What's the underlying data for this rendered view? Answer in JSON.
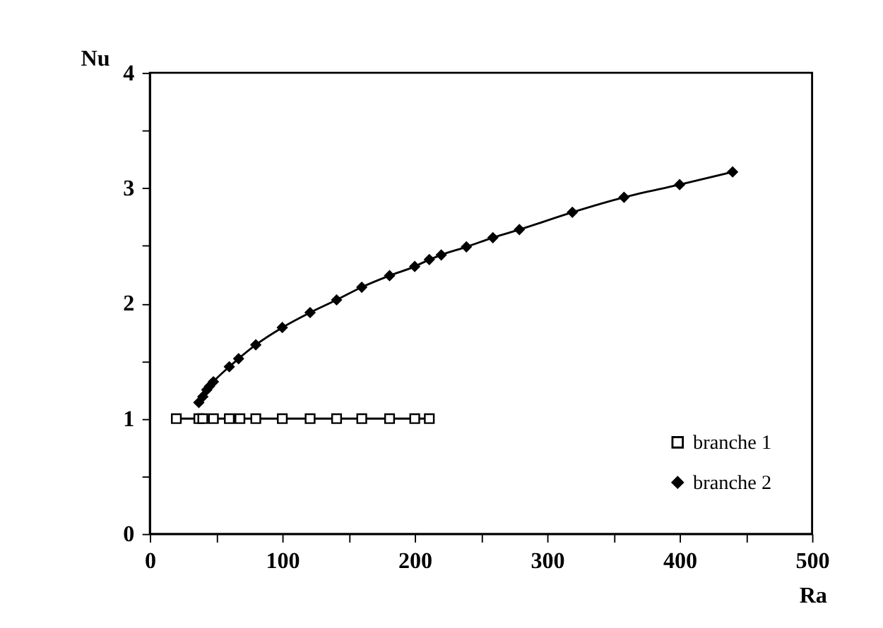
{
  "chart_data": {
    "type": "line",
    "xlabel": "Ra",
    "ylabel": "Nu",
    "xlim": [
      0,
      500
    ],
    "ylim": [
      0,
      4
    ],
    "xticks": [
      0,
      {
        "value": 50,
        "label": null
      },
      100,
      {
        "value": 150,
        "label": null
      },
      200,
      {
        "value": 250,
        "label": null
      },
      300,
      {
        "value": 350,
        "label": null
      },
      400,
      {
        "value": 450,
        "label": null
      },
      500
    ],
    "yticks": [
      0,
      {
        "value": 0.5,
        "label": null
      },
      1,
      {
        "value": 1.5,
        "label": null
      },
      2,
      {
        "value": 2.5,
        "label": null
      },
      3,
      {
        "value": 3.5,
        "label": null
      },
      4
    ],
    "grid": false,
    "legend": "bottom right",
    "line_style": "solid",
    "series": [
      {
        "name": "branche 1",
        "color": "#000000",
        "marker": "square",
        "x": [
          20,
          37,
          40,
          48,
          60,
          68,
          80,
          100,
          121,
          141,
          160,
          181,
          200,
          211
        ],
        "values": [
          1,
          1,
          1,
          1,
          1,
          1,
          1,
          1,
          1,
          1,
          1,
          1,
          1,
          1
        ]
      },
      {
        "name": "branche 2",
        "color": "#000000",
        "marker": "diamond",
        "x": [
          37,
          40,
          43,
          45,
          48,
          60,
          67,
          80,
          100,
          121,
          141,
          160,
          181,
          200,
          211,
          220,
          239,
          259,
          279,
          319,
          358,
          400,
          440
        ],
        "values": [
          1.14,
          1.19,
          1.25,
          1.28,
          1.32,
          1.45,
          1.52,
          1.64,
          1.79,
          1.92,
          2.03,
          2.14,
          2.24,
          2.32,
          2.38,
          2.42,
          2.49,
          2.57,
          2.64,
          2.79,
          2.92,
          3.03,
          3.14
        ]
      }
    ]
  }
}
